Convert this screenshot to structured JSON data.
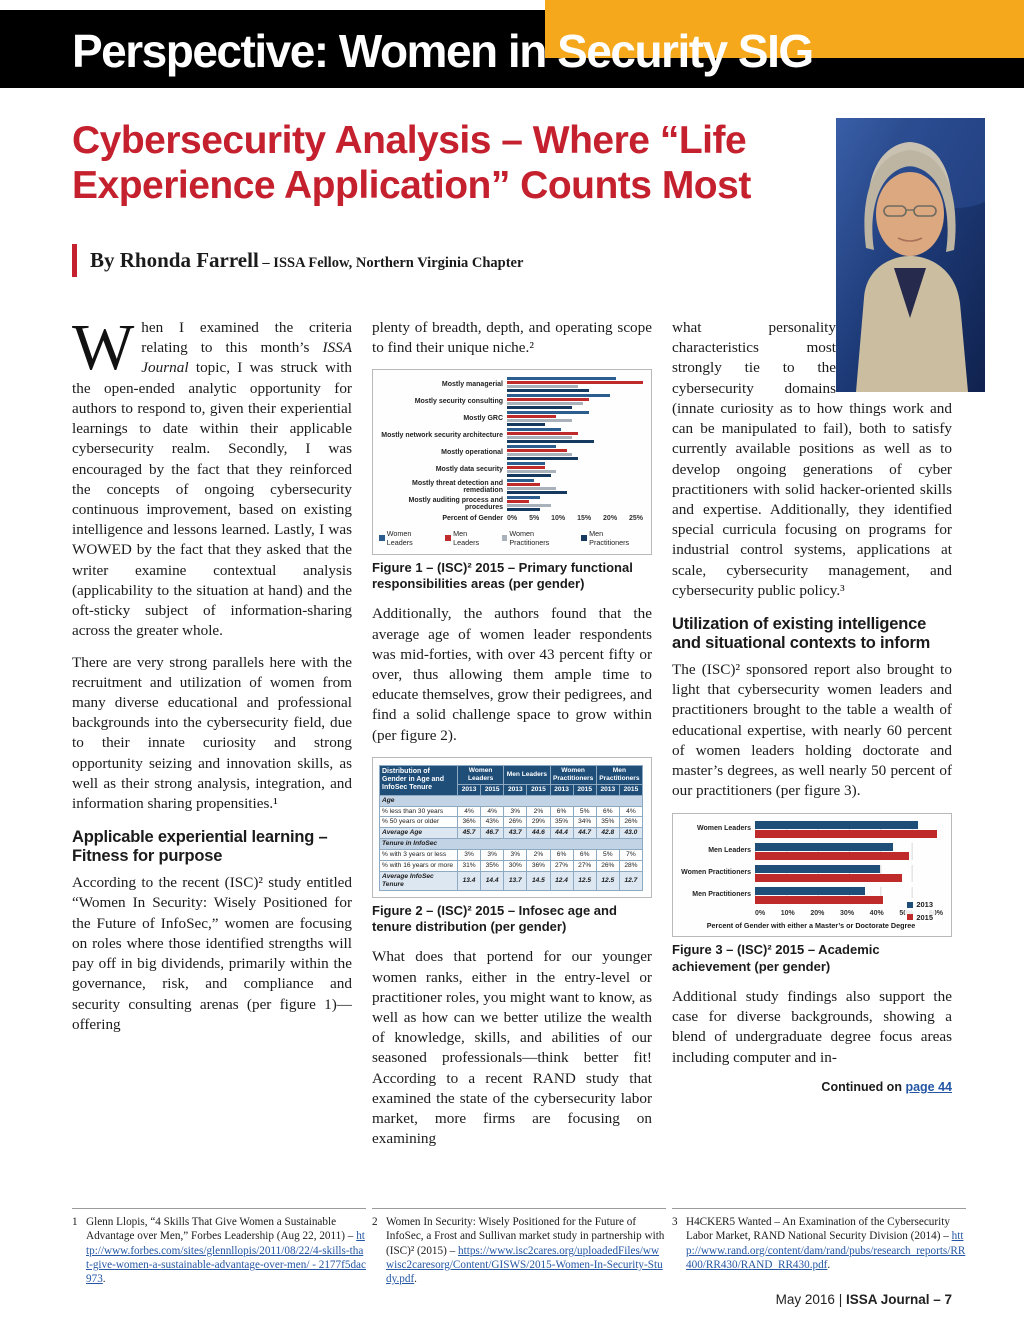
{
  "header": {
    "title_left": "Perspective: Women in",
    "title_right": "Security SIG"
  },
  "article": {
    "title_line1": "Cybersecurity Analysis – Where “Life",
    "title_line2": "Experience Application” Counts Most",
    "byline_name": "By Rhonda Farrell",
    "byline_rest": " – ISSA Fellow, Northern Virginia Chapter"
  },
  "col1": {
    "dropcap": "W",
    "p1_a": "hen I examined the criteria relating to this month’s ",
    "p1_italic": "ISSA Journal",
    "p1_b": " topic, I was struck with the open-ended analytic opportunity for authors to respond to, given their experiential learnings to date within their applicable cybersecurity realm. Secondly, I was encouraged by the fact that they reinforced the concepts of ongoing cybersecurity continuous improvement, based on existing intelligence and lessons learned. Lastly, I was WOWED by the fact that they asked that the writer examine contextual analysis (applicability to the situation at hand) and the oft-sticky subject of information-sharing across the greater whole.",
    "p2": "There are very strong parallels here with the recruitment and utilization of women from many diverse educational and professional backgrounds into the cybersecurity field, due to their innate curiosity and strong opportunity seizing and innovation skills, as well as their strong analysis, integration, and information sharing propensities.¹",
    "h1": "Applicable experiential learning – Fitness for purpose",
    "p3": "According to the recent (ISC)² study entitled “Women In Security: Wisely Positioned for the Future of InfoSec,” women are focusing on roles where those identified strengths will pay off in big dividends, primarily within the governance, risk, and compliance and security consulting arenas (per figure 1)—offering"
  },
  "col2": {
    "p4": "plenty of breadth, depth, and operating scope to find their unique niche.²",
    "p5": "Additionally, the authors found that the average age of women leader respondents was mid-forties, with over 43 percent fifty or over, thus allowing them ample time to educate themselves, grow their pedigrees, and find a solid challenge space to grow within (per figure 2).",
    "p6": "What does that portend for our younger women ranks, either in the entry-level or practitioner roles, you might want to know, as well as how can we better utilize the wealth of knowledge, skills, and abilities of our seasoned professionals—think better fit! According to a recent RAND study that examined the state of the cybersecurity labor market, more firms are focusing on examining"
  },
  "col3": {
    "p7": "what personality characteristics most strongly tie to the cybersecurity domains (innate curiosity as to how things work and can be manipulated to fail), both to satisfy currently available positions as well as to develop ongoing generations of cyber practitioners with solid hacker-oriented skills and expertise. Additionally, they identified special curricula focusing on programs for industrial control systems, applications at scale, cybersecurity management, and cybersecurity public policy.³",
    "h2": "Utilization of existing intelligence and situational contexts to inform",
    "p8": "The (ISC)² sponsored report also brought to light that cybersecurity women leaders and practitioners brought to the table a wealth of educational expertise, with nearly 60 percent of women leaders holding doctorate and master’s degrees, as well nearly 50 percent of our practitioners (per figure 3).",
    "p9": "Additional study findings also support the case for diverse backgrounds, showing a blend of undergraduate degree focus areas including computer and in-",
    "continued_prefix": "Continued on ",
    "continued_link": "page 44"
  },
  "figures": {
    "fig1": {
      "caption": "Figure 1 – (ISC)² 2015 – Primary functional responsibilities areas (per gender)",
      "chart": {
        "type": "bar",
        "orientation": "horizontal",
        "categories": [
          "Mostly managerial",
          "Mostly security consulting",
          "Mostly GRC",
          "Mostly network security architecture",
          "Mostly operational",
          "Mostly data security",
          "Mostly threat detection and remediation",
          "Mostly auditing process and procedures"
        ],
        "series": [
          {
            "name": "Women Leaders",
            "color": "#2c5d8f",
            "values": [
              20,
              19,
              15,
              10,
              9,
              7,
              5,
              6
            ]
          },
          {
            "name": "Men Leaders",
            "color": "#bf2b2b",
            "values": [
              25,
              15,
              9,
              13,
              11,
              7,
              6,
              4
            ]
          },
          {
            "name": "Women Practitioners",
            "color": "#a9b2ba",
            "values": [
              13,
              14,
              12,
              12,
              12,
              9,
              9,
              8
            ]
          },
          {
            "name": "Men Practitioners",
            "color": "#163a5f",
            "values": [
              15,
              12,
              7,
              16,
              13,
              8,
              11,
              6
            ]
          }
        ],
        "xlabel": "Percent of Gender",
        "ticks": [
          "0%",
          "5%",
          "10%",
          "15%",
          "20%",
          "25%"
        ],
        "xmax": 25,
        "legend_position": "bottom"
      }
    },
    "fig2": {
      "caption": "Figure 2 – (ISC)² 2015 – Infosec age and tenure distribution (per gender)",
      "table": {
        "corner": "Distribution of Gender in Age and InfoSec Tenure",
        "groups": [
          "Women Leaders",
          "Men Leaders",
          "Women Practitioners",
          "Men Practitioners"
        ],
        "years": [
          "2013",
          "2015",
          "2013",
          "2015",
          "2013",
          "2015",
          "2013",
          "2015"
        ],
        "sections": [
          {
            "title": "Age",
            "rows": [
              {
                "label": "% less than 30 years",
                "values": [
                  "4%",
                  "4%",
                  "3%",
                  "2%",
                  "6%",
                  "5%",
                  "6%",
                  "4%"
                ],
                "emphasis": false
              },
              {
                "label": "% 50 years or older",
                "values": [
                  "36%",
                  "43%",
                  "26%",
                  "29%",
                  "35%",
                  "34%",
                  "35%",
                  "26%"
                ],
                "emphasis": false
              },
              {
                "label": "Average Age",
                "values": [
                  "45.7",
                  "46.7",
                  "43.7",
                  "44.6",
                  "44.4",
                  "44.7",
                  "42.8",
                  "43.0"
                ],
                "emphasis": true
              }
            ]
          },
          {
            "title": "Tenure in InfoSec",
            "rows": [
              {
                "label": "% with 3 years or less",
                "values": [
                  "3%",
                  "3%",
                  "3%",
                  "2%",
                  "6%",
                  "6%",
                  "5%",
                  "7%"
                ],
                "emphasis": false
              },
              {
                "label": "% with 16 years or more",
                "values": [
                  "31%",
                  "35%",
                  "30%",
                  "36%",
                  "27%",
                  "27%",
                  "26%",
                  "28%"
                ],
                "emphasis": false
              },
              {
                "label": "Average InfoSec Tenure",
                "values": [
                  "13.4",
                  "14.4",
                  "13.7",
                  "14.5",
                  "12.4",
                  "12.5",
                  "12.5",
                  "12.7"
                ],
                "emphasis": true
              }
            ]
          }
        ]
      }
    },
    "fig3": {
      "caption": "Figure 3 – (ISC)² 2015 – Academic achievement (per gender)",
      "chart": {
        "type": "bar",
        "orientation": "horizontal",
        "categories": [
          "Women Leaders",
          "Men Leaders",
          "Women Practitioners",
          "Men Practitioners"
        ],
        "series": [
          {
            "name": "2013",
            "color": "#1f4e79",
            "values": [
              52,
              44,
              40,
              35
            ]
          },
          {
            "name": "2015",
            "color": "#bf2b2b",
            "values": [
              58,
              49,
              47,
              41
            ]
          }
        ],
        "xlabel": "Percent of Gender with either a Master’s or Doctorate Degree",
        "ticks": [
          "0%",
          "10%",
          "20%",
          "30%",
          "40%",
          "50%",
          "60%"
        ],
        "xmax": 60,
        "legend_position": "right"
      }
    }
  },
  "footnotes": [
    {
      "num": "1",
      "text": "Glenn Llopis, “4 Skills That Give Women a Sustainable Advantage over Men,” Forbes Leadership (Aug 22, 2011) – ",
      "link": "http://www.forbes.com/sites/glennllopis/2011/08/22/4-skills-that-give-women-a-sustainable-advantage-over-men/ - 2177f5dac973",
      "after": "."
    },
    {
      "num": "2",
      "text": "Women In Security: Wisely Positioned for the Future of InfoSec, a Frost and Sullivan market study in partnership with (ISC)² (2015) – ",
      "link": "https://www.isc2cares.org/uploadedFiles/wwwisc2caresorg/Content/GISWS/2015-Women-In-Security-Study.pdf",
      "after": "."
    },
    {
      "num": "3",
      "text": "H4CKER5 Wanted – An Examination of the Cybersecurity Labor Market, RAND National Security Division (2014) – ",
      "link": "http://www.rand.org/content/dam/rand/pubs/research_reports/RR400/RR430/RAND_RR430.pdf",
      "after": "."
    }
  ],
  "footer": {
    "date": "May 2016",
    "sep": " | ",
    "journal": "ISSA Journal – 7"
  }
}
